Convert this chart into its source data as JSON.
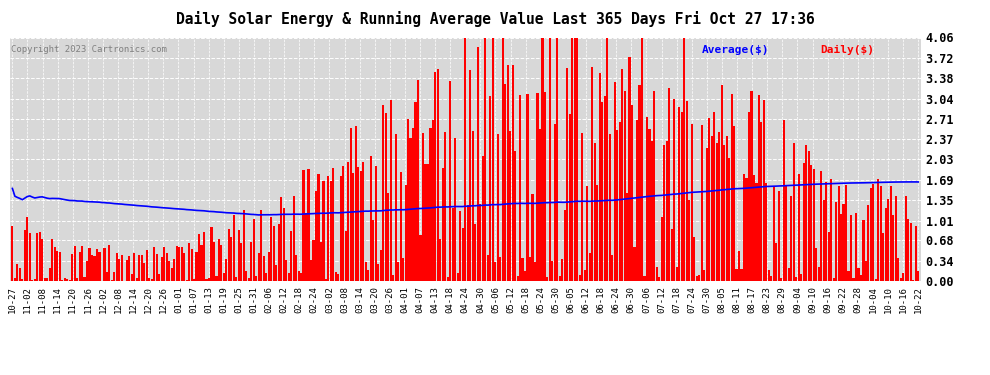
{
  "title": "Daily Solar Energy & Running Average Value Last 365 Days Fri Oct 27 17:36",
  "copyright": "Copyright 2023 Cartronics.com",
  "legend_avg": "Average($)",
  "legend_daily": "Daily($)",
  "bar_color": "#ff0000",
  "avg_line_color": "#0000ff",
  "background_color": "#ffffff",
  "plot_bg_color": "#d8d8d8",
  "grid_color": "#ffffff",
  "yticks": [
    0.0,
    0.34,
    0.68,
    1.01,
    1.35,
    1.69,
    2.03,
    2.37,
    2.71,
    3.04,
    3.38,
    3.72,
    4.06
  ],
  "ylim": [
    0,
    4.06
  ],
  "xlabels": [
    "10-27",
    "11-02",
    "11-08",
    "11-14",
    "11-20",
    "11-26",
    "12-02",
    "12-08",
    "12-14",
    "12-20",
    "12-26",
    "01-01",
    "01-07",
    "01-13",
    "01-19",
    "01-25",
    "01-31",
    "02-06",
    "02-12",
    "02-18",
    "02-24",
    "03-02",
    "03-08",
    "03-14",
    "03-20",
    "03-26",
    "04-01",
    "04-07",
    "04-13",
    "04-18",
    "04-24",
    "04-30",
    "05-06",
    "05-12",
    "05-18",
    "05-24",
    "05-30",
    "06-05",
    "06-12",
    "06-18",
    "06-24",
    "06-30",
    "07-06",
    "07-12",
    "07-18",
    "07-24",
    "07-30",
    "08-05",
    "08-11",
    "08-17",
    "08-23",
    "08-29",
    "09-04",
    "09-10",
    "09-16",
    "09-22",
    "09-28",
    "10-04",
    "10-10",
    "10-16",
    "10-22"
  ]
}
